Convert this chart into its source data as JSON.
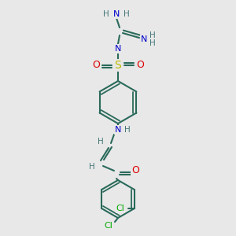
{
  "bg_color": "#e8e8e8",
  "bond_color": "#2a6a5a",
  "atom_colors": {
    "N": "#0000cc",
    "O": "#dd0000",
    "S": "#bbbb00",
    "Cl": "#00aa00",
    "H": "#447777",
    "C": "#2a6a5a"
  },
  "fig_width": 3.0,
  "fig_height": 3.0,
  "dpi": 100
}
